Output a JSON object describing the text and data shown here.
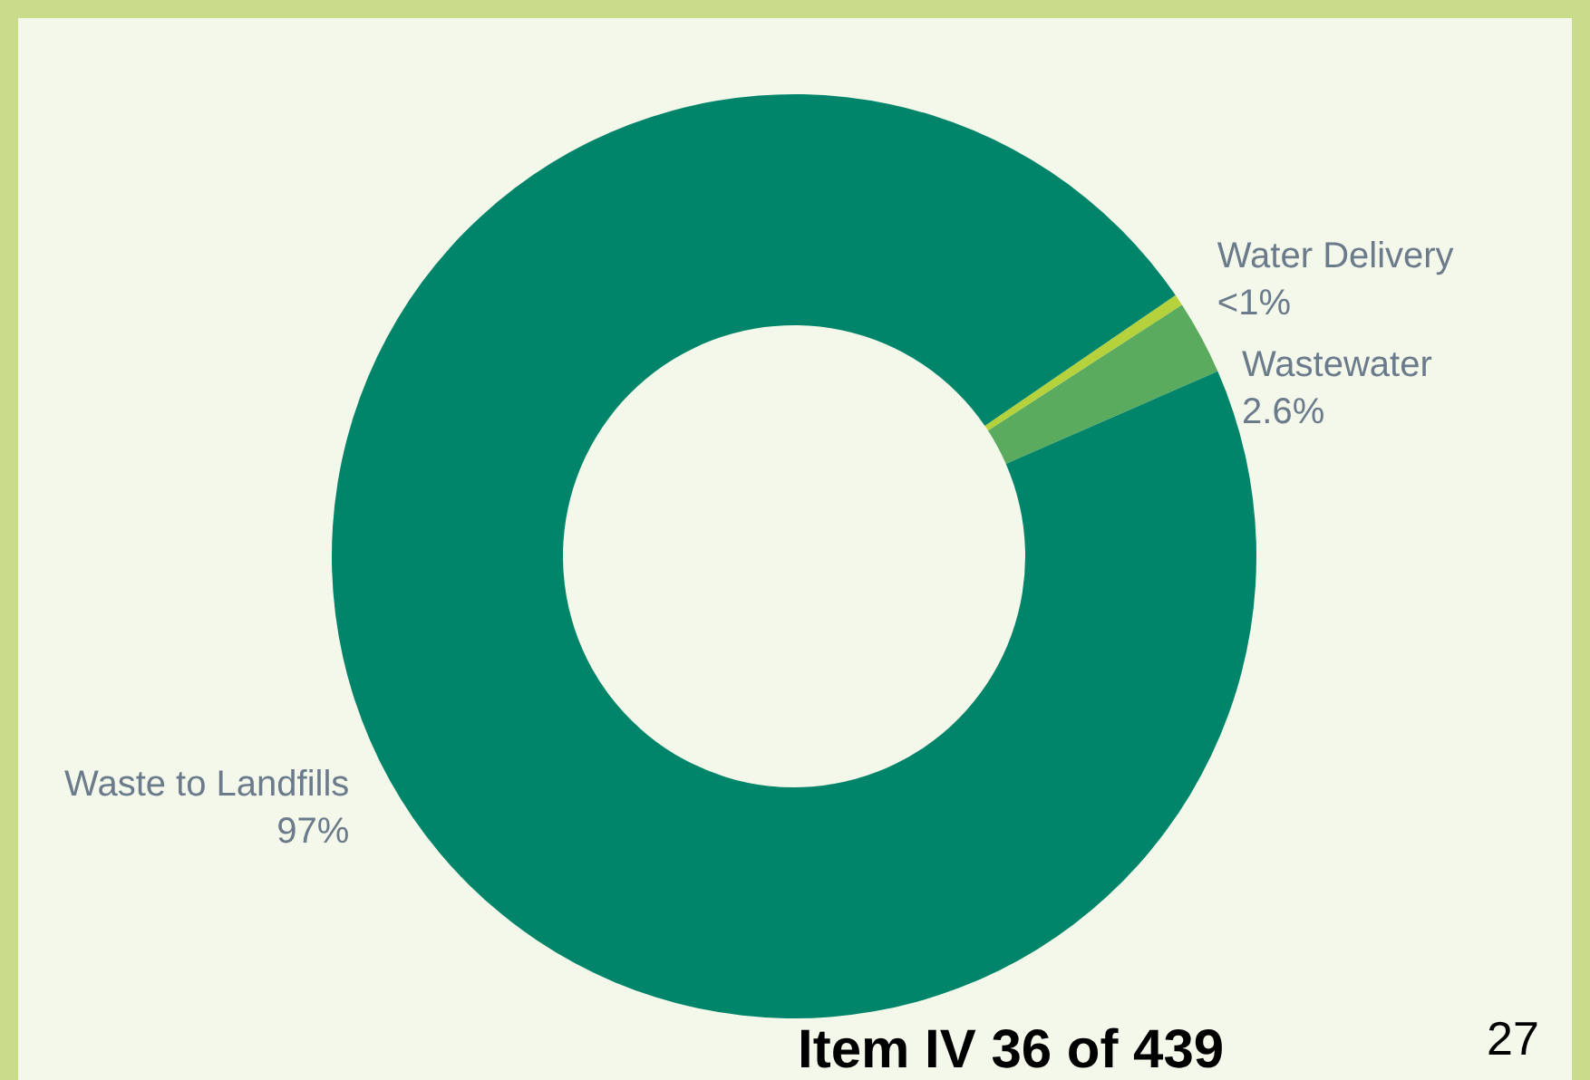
{
  "chart_data": {
    "type": "donut",
    "categories": [
      "Water Delivery",
      "Wastewater",
      "Waste to Landfills"
    ],
    "values": [
      0.4,
      2.6,
      97
    ],
    "colors": [
      "#b5d23c",
      "#5aab5e",
      "#00856a"
    ],
    "value_labels": [
      "<1%",
      "2.6%",
      "97%"
    ],
    "legend": false,
    "annotations": [
      "Item IV 36 of 439",
      "27"
    ]
  }
}
